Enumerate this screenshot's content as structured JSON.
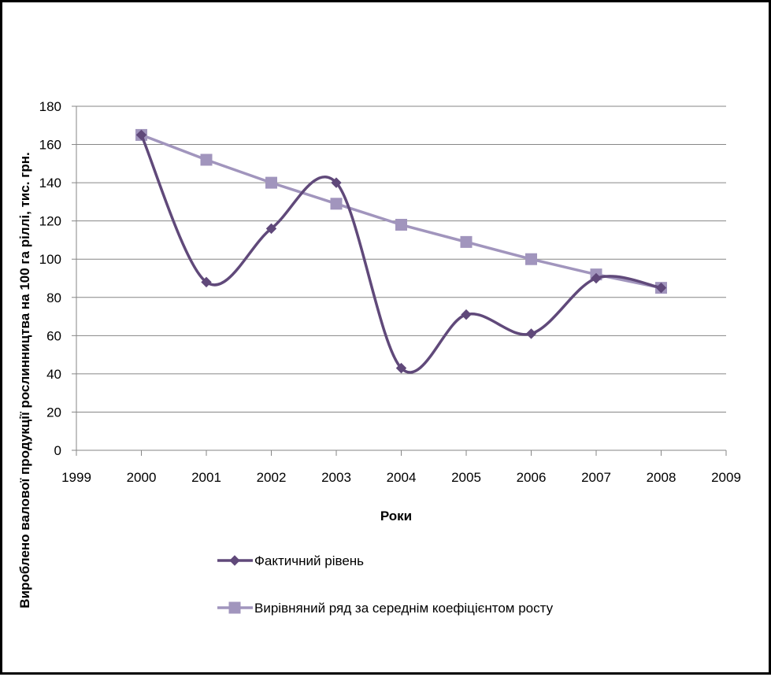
{
  "chart_data": {
    "type": "line",
    "xlabel": "Роки",
    "ylabel": "Вироблено валової продукції рослинництва на 100 га ріллі, тис. грн.",
    "xlim": [
      1999,
      2009
    ],
    "ylim": [
      0,
      180
    ],
    "xticks": [
      1999,
      2000,
      2001,
      2002,
      2003,
      2004,
      2005,
      2006,
      2007,
      2008,
      2009
    ],
    "yticks": [
      0,
      20,
      40,
      60,
      80,
      100,
      120,
      140,
      160,
      180
    ],
    "grid": "horizontal",
    "legend_position": "bottom",
    "series": [
      {
        "name": "Фактичний рівень",
        "color": "#60497a",
        "marker": "diamond",
        "smooth": true,
        "x": [
          2000,
          2001,
          2002,
          2003,
          2004,
          2005,
          2006,
          2007,
          2008
        ],
        "y": [
          165,
          88,
          116,
          140,
          43,
          71,
          61,
          90,
          85
        ]
      },
      {
        "name": "Вирівняний ряд за середнім коефіцієнтом росту",
        "color": "#a195bd",
        "marker": "square",
        "smooth": false,
        "x": [
          2000,
          2001,
          2002,
          2003,
          2004,
          2005,
          2006,
          2007,
          2008
        ],
        "y": [
          165,
          152,
          140,
          129,
          118,
          109,
          100,
          92,
          85
        ]
      }
    ]
  }
}
